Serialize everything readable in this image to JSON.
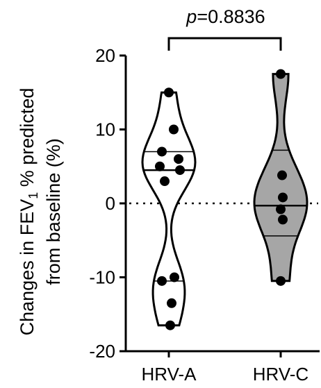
{
  "chart_data": {
    "type": "violin",
    "title": "",
    "ylabel_line1": "Changes in FEV",
    "ylabel_sub": "1",
    "ylabel_line1_end": " % predicted",
    "ylabel_line2": "from baseline (%)",
    "xlabel": "",
    "ylim": [
      -20,
      20
    ],
    "yticks": [
      20,
      10,
      0,
      -10,
      -20
    ],
    "reference_line": 0,
    "categories": [
      "HRV-A",
      "HRV-C"
    ],
    "series": [
      {
        "category": "HRV-A",
        "fill": "#ffffff",
        "points": [
          15.0,
          10.0,
          7.0,
          6.0,
          5.0,
          4.5,
          3.0,
          -10.0,
          -10.5,
          -13.5,
          -16.5
        ],
        "median": 4.5,
        "q1": -10.5,
        "q3": 7.0,
        "min": -16.5,
        "max": 15.0
      },
      {
        "category": "HRV-C",
        "fill": "#a6a6a6",
        "points": [
          17.5,
          3.8,
          0.8,
          -0.8,
          -2.2,
          -10.5
        ],
        "median": -0.3,
        "q1": -4.4,
        "q3": 7.2,
        "min": -10.5,
        "max": 17.5
      }
    ],
    "comparison": {
      "label_italic": "p",
      "label_value": "=0.8836",
      "between": [
        "HRV-A",
        "HRV-C"
      ]
    }
  }
}
